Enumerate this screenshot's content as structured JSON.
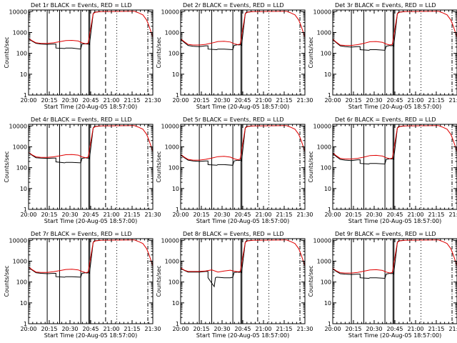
{
  "colors": {
    "events": "#000000",
    "lld": "#e00000",
    "axes": "#000000",
    "background": "#ffffff"
  },
  "shared": {
    "xlabel": "Start Time (20-Aug-05 18:57:00)",
    "ylabel": "Counts/sec",
    "x_ticks": [
      "20:00",
      "20:15",
      "20:30",
      "20:45",
      "21:00",
      "21:15",
      "21:30"
    ],
    "y_ticks": [
      "1",
      "10",
      "100",
      "1000",
      "10000"
    ]
  },
  "chart_data": [
    {
      "type": "line",
      "title": "Det 1r BLACK = Events, RED = LLD",
      "xlabel": "Start Time (20-Aug-05 18:57:00)",
      "ylabel": "Counts/sec",
      "y_scale": "log",
      "xlim": [
        0,
        100
      ],
      "ylim": [
        1,
        12000
      ],
      "series": [
        {
          "name": "Events",
          "color": "#000000",
          "x": [
            0,
            3,
            6,
            10,
            15,
            20,
            22,
            22,
            29,
            30,
            35,
            42,
            42,
            43,
            46,
            47,
            48,
            49,
            52,
            53,
            58
          ],
          "y": [
            500,
            380,
            300,
            280,
            270,
            280,
            280,
            180,
            170,
            180,
            180,
            160,
            160,
            280,
            290,
            280,
            280,
            260,
            8000,
            9500,
            10000
          ]
        },
        {
          "name": "LLD",
          "color": "#e00000",
          "x": [
            0,
            3,
            6,
            10,
            15,
            20,
            25,
            30,
            35,
            40,
            43,
            46,
            48,
            52,
            54,
            58,
            85,
            88,
            92,
            95,
            97,
            100
          ],
          "y": [
            520,
            400,
            320,
            300,
            300,
            320,
            360,
            410,
            420,
            390,
            320,
            290,
            310,
            8000,
            9500,
            10000,
            10500,
            9000,
            7000,
            4000,
            2000,
            600
          ]
        }
      ]
    },
    {
      "type": "line",
      "title": "Det 2r BLACK = Events, RED = LLD",
      "xlabel": "Start Time (20-Aug-05 18:57:00)",
      "ylabel": "Counts/sec",
      "y_scale": "log",
      "xlim": [
        0,
        100
      ],
      "ylim": [
        1,
        12000
      ],
      "series": [
        {
          "name": "Events",
          "color": "#000000",
          "x": [
            0,
            3,
            6,
            10,
            15,
            20,
            22,
            22,
            29,
            30,
            35,
            42,
            42,
            43,
            46,
            47,
            48,
            49,
            52,
            53,
            58
          ],
          "y": [
            470,
            330,
            240,
            220,
            210,
            230,
            230,
            160,
            150,
            160,
            160,
            150,
            150,
            240,
            260,
            250,
            260,
            240,
            8000,
            9500,
            10000
          ]
        },
        {
          "name": "LLD",
          "color": "#e00000",
          "x": [
            0,
            3,
            6,
            10,
            15,
            20,
            25,
            30,
            35,
            40,
            43,
            46,
            48,
            52,
            54,
            58,
            85,
            88,
            92,
            95,
            97,
            100
          ],
          "y": [
            500,
            360,
            270,
            250,
            250,
            270,
            310,
            370,
            380,
            350,
            290,
            260,
            280,
            8000,
            9500,
            10000,
            10500,
            9000,
            7000,
            4000,
            2000,
            600
          ]
        }
      ]
    },
    {
      "type": "line",
      "title": "Det 3r BLACK = Events, RED = LLD",
      "xlabel": "Start Time (20-Aug-05 18:57:00)",
      "ylabel": "Counts/sec",
      "y_scale": "log",
      "xlim": [
        0,
        100
      ],
      "ylim": [
        1,
        12000
      ],
      "series": [
        {
          "name": "Events",
          "color": "#000000",
          "x": [
            0,
            3,
            6,
            10,
            15,
            20,
            22,
            22,
            29,
            30,
            35,
            42,
            42,
            43,
            46,
            47,
            48,
            49,
            52,
            53,
            58
          ],
          "y": [
            450,
            320,
            230,
            210,
            200,
            210,
            210,
            150,
            140,
            150,
            150,
            140,
            140,
            220,
            240,
            230,
            240,
            220,
            8000,
            9500,
            10000
          ]
        },
        {
          "name": "LLD",
          "color": "#e00000",
          "x": [
            0,
            3,
            6,
            10,
            15,
            20,
            25,
            30,
            35,
            40,
            43,
            46,
            48,
            52,
            54,
            58,
            85,
            88,
            92,
            95,
            97,
            100
          ],
          "y": [
            480,
            340,
            250,
            240,
            240,
            260,
            300,
            360,
            370,
            340,
            280,
            250,
            270,
            8000,
            9500,
            10000,
            10500,
            9000,
            7000,
            4000,
            2000,
            600
          ]
        }
      ]
    },
    {
      "type": "line",
      "title": "Det 4r BLACK = Events, RED = LLD",
      "xlabel": "Start Time (20-Aug-05 18:57:00)",
      "ylabel": "Counts/sec",
      "y_scale": "log",
      "xlim": [
        0,
        100
      ],
      "ylim": [
        1,
        12000
      ],
      "series": [
        {
          "name": "Events",
          "color": "#000000",
          "x": [
            0,
            3,
            6,
            10,
            15,
            20,
            22,
            22,
            29,
            30,
            35,
            42,
            42,
            43,
            46,
            47,
            48,
            49,
            52,
            53,
            58
          ],
          "y": [
            520,
            390,
            300,
            290,
            280,
            290,
            290,
            190,
            170,
            180,
            180,
            170,
            170,
            280,
            300,
            290,
            290,
            270,
            8000,
            9500,
            10000
          ]
        },
        {
          "name": "LLD",
          "color": "#e00000",
          "x": [
            0,
            3,
            6,
            10,
            15,
            20,
            25,
            30,
            35,
            40,
            43,
            46,
            48,
            52,
            54,
            58,
            85,
            88,
            92,
            95,
            97,
            100
          ],
          "y": [
            540,
            410,
            330,
            310,
            310,
            330,
            370,
            420,
            430,
            400,
            330,
            300,
            320,
            8000,
            9500,
            10000,
            10500,
            9000,
            7000,
            4000,
            2000,
            600
          ]
        }
      ]
    },
    {
      "type": "line",
      "title": "Det 5r BLACK = Events, RED = LLD",
      "xlabel": "Start Time (20-Aug-05 18:57:00)",
      "ylabel": "Counts/sec",
      "y_scale": "log",
      "xlim": [
        0,
        100
      ],
      "ylim": [
        1,
        12000
      ],
      "series": [
        {
          "name": "Events",
          "color": "#000000",
          "x": [
            0,
            3,
            6,
            10,
            15,
            20,
            22,
            22,
            29,
            30,
            35,
            42,
            42,
            43,
            46,
            47,
            48,
            49,
            52,
            53,
            58
          ],
          "y": [
            400,
            300,
            230,
            210,
            200,
            210,
            210,
            140,
            130,
            140,
            140,
            130,
            130,
            210,
            230,
            220,
            230,
            210,
            8000,
            9500,
            10000
          ]
        },
        {
          "name": "LLD",
          "color": "#e00000",
          "x": [
            0,
            3,
            6,
            10,
            15,
            20,
            25,
            30,
            35,
            40,
            43,
            46,
            48,
            52,
            54,
            58,
            85,
            88,
            92,
            95,
            97,
            100
          ],
          "y": [
            430,
            320,
            250,
            230,
            230,
            250,
            290,
            340,
            350,
            320,
            270,
            240,
            260,
            8000,
            9500,
            10000,
            10500,
            9000,
            7000,
            4000,
            2000,
            600
          ]
        }
      ]
    },
    {
      "type": "line",
      "title": "Det 6r BLACK = Events, RED = LLD",
      "xlabel": "Start Time (20-Aug-05 18:57:00)",
      "ylabel": "Counts/sec",
      "y_scale": "log",
      "xlim": [
        0,
        100
      ],
      "ylim": [
        1,
        12000
      ],
      "series": [
        {
          "name": "Events",
          "color": "#000000",
          "x": [
            0,
            3,
            6,
            10,
            15,
            20,
            22,
            22,
            29,
            30,
            35,
            42,
            42,
            43,
            46,
            47,
            48,
            49,
            52,
            53,
            58
          ],
          "y": [
            480,
            340,
            250,
            230,
            220,
            240,
            240,
            160,
            150,
            160,
            160,
            150,
            150,
            250,
            270,
            260,
            270,
            250,
            8000,
            9500,
            10000
          ]
        },
        {
          "name": "LLD",
          "color": "#e00000",
          "x": [
            0,
            3,
            6,
            10,
            15,
            20,
            25,
            30,
            35,
            40,
            43,
            46,
            48,
            52,
            54,
            58,
            85,
            88,
            92,
            95,
            97,
            100
          ],
          "y": [
            510,
            370,
            280,
            260,
            260,
            280,
            320,
            380,
            390,
            360,
            300,
            270,
            290,
            8000,
            9500,
            10000,
            10500,
            9000,
            7000,
            4000,
            2000,
            600
          ]
        }
      ]
    },
    {
      "type": "line",
      "title": "Det 7r BLACK = Events, RED = LLD",
      "xlabel": "Start Time (20-Aug-05 18:57:00)",
      "ylabel": "Counts/sec",
      "y_scale": "log",
      "xlim": [
        0,
        100
      ],
      "ylim": [
        1,
        12000
      ],
      "series": [
        {
          "name": "Events",
          "color": "#000000",
          "x": [
            0,
            3,
            6,
            10,
            15,
            20,
            22,
            22,
            29,
            30,
            35,
            42,
            42,
            43,
            46,
            47,
            48,
            49,
            52,
            53,
            58
          ],
          "y": [
            500,
            370,
            280,
            260,
            250,
            260,
            260,
            180,
            170,
            180,
            180,
            170,
            170,
            260,
            280,
            270,
            280,
            260,
            8000,
            9500,
            10000
          ]
        },
        {
          "name": "LLD",
          "color": "#e00000",
          "x": [
            0,
            3,
            6,
            10,
            15,
            20,
            25,
            30,
            35,
            40,
            43,
            46,
            48,
            52,
            54,
            58,
            85,
            88,
            92,
            95,
            97,
            100
          ],
          "y": [
            520,
            390,
            300,
            290,
            290,
            310,
            350,
            400,
            410,
            380,
            320,
            280,
            300,
            8000,
            9500,
            10000,
            10500,
            9000,
            7000,
            4000,
            2000,
            600
          ]
        }
      ]
    },
    {
      "type": "line",
      "title": "Det 8r BLACK = Events, RED = LLD",
      "xlabel": "Start Time (20-Aug-05 18:57:00)",
      "ylabel": "Counts/sec",
      "y_scale": "log",
      "xlim": [
        0,
        100
      ],
      "ylim": [
        1,
        12000
      ],
      "series": [
        {
          "name": "Events",
          "color": "#000000",
          "x": [
            0,
            3,
            6,
            10,
            15,
            20,
            22,
            22,
            27,
            28,
            29,
            35,
            40,
            42,
            42,
            43,
            46,
            47,
            48,
            49,
            52,
            53,
            58
          ],
          "y": [
            460,
            360,
            300,
            300,
            300,
            320,
            320,
            160,
            60,
            160,
            170,
            160,
            160,
            170,
            170,
            290,
            300,
            290,
            300,
            280,
            8000,
            9500,
            10000
          ]
        },
        {
          "name": "LLD",
          "color": "#e00000",
          "x": [
            0,
            3,
            6,
            10,
            15,
            20,
            25,
            30,
            35,
            40,
            43,
            46,
            48,
            52,
            54,
            58,
            85,
            88,
            92,
            95,
            97,
            100
          ],
          "y": [
            480,
            370,
            320,
            320,
            320,
            340,
            380,
            300,
            340,
            370,
            330,
            310,
            320,
            8000,
            9500,
            10000,
            10500,
            9000,
            7000,
            4000,
            2000,
            600
          ]
        }
      ]
    },
    {
      "type": "line",
      "title": "Det 9r BLACK = Events, RED = LLD",
      "xlabel": "Start Time (20-Aug-05 18:57:00)",
      "ylabel": "Counts/sec",
      "y_scale": "log",
      "xlim": [
        0,
        100
      ],
      "ylim": [
        1,
        12000
      ],
      "series": [
        {
          "name": "Events",
          "color": "#000000",
          "x": [
            0,
            3,
            6,
            10,
            15,
            20,
            22,
            22,
            29,
            30,
            35,
            42,
            42,
            43,
            46,
            47,
            48,
            49,
            52,
            53,
            58
          ],
          "y": [
            420,
            320,
            250,
            240,
            230,
            240,
            240,
            160,
            150,
            160,
            160,
            150,
            150,
            240,
            260,
            250,
            260,
            240,
            8000,
            9500,
            10000
          ]
        },
        {
          "name": "LLD",
          "color": "#e00000",
          "x": [
            0,
            3,
            6,
            10,
            15,
            20,
            25,
            30,
            35,
            40,
            43,
            46,
            48,
            52,
            54,
            58,
            85,
            88,
            92,
            95,
            97,
            100
          ],
          "y": [
            450,
            340,
            280,
            270,
            270,
            290,
            330,
            380,
            390,
            360,
            300,
            270,
            290,
            8000,
            9500,
            10000,
            10500,
            9000,
            7000,
            4000,
            2000,
            600
          ]
        }
      ]
    }
  ]
}
